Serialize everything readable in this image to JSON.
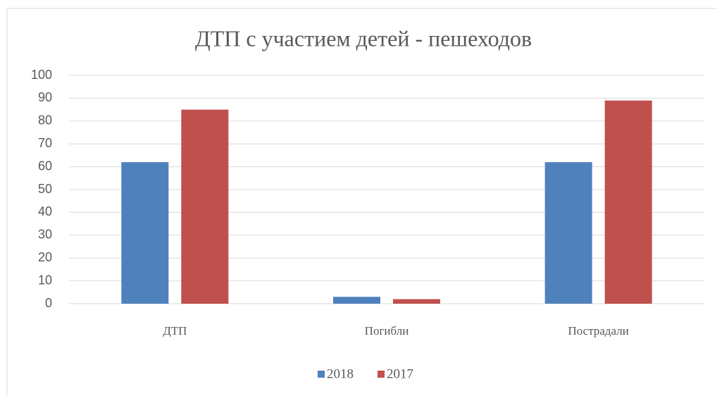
{
  "chart_data": {
    "type": "bar",
    "title": "ДТП с участием детей - пешеходов",
    "categories": [
      "ДТП",
      "Погибли",
      "Пострадали"
    ],
    "series": [
      {
        "name": "2018",
        "color": "#4f81bd",
        "values": [
          62,
          3,
          62
        ]
      },
      {
        "name": "2017",
        "color": "#c0504d",
        "values": [
          85,
          2,
          89
        ]
      }
    ],
    "ylim": [
      0,
      100
    ],
    "yticks": [
      0,
      10,
      20,
      30,
      40,
      50,
      60,
      70,
      80,
      90,
      100
    ],
    "grid": true,
    "legend": "bottom"
  }
}
